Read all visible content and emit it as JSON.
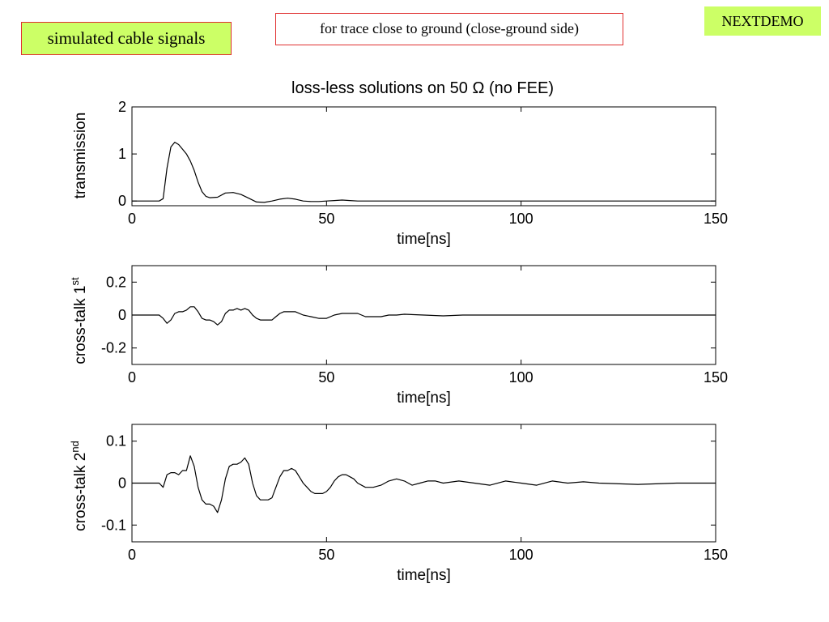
{
  "labels": {
    "left": "simulated cable signals",
    "center": "for trace close to ground (close-ground side)",
    "right": "NEXTDEMO"
  },
  "figure_title": "loss-less solutions on 50 Ω (no FEE)",
  "chart_data": [
    {
      "type": "line",
      "title": "loss-less solutions on 50 Ω (no FEE)",
      "xlabel": "time[ns]",
      "ylabel": "transmission",
      "ylabel_sup": "",
      "xlim": [
        0,
        150
      ],
      "ylim": [
        -0.1,
        2
      ],
      "xticks": [
        0,
        50,
        100,
        150
      ],
      "yticks": [
        0,
        1,
        2
      ],
      "grid": false,
      "series": [
        {
          "x": [
            0,
            7,
            8,
            9,
            10,
            11,
            12,
            13,
            14,
            15,
            16,
            17,
            18,
            19,
            20,
            22,
            24,
            26,
            28,
            30,
            32,
            34,
            36,
            38,
            40,
            42,
            44,
            46,
            48,
            50,
            52,
            54,
            56,
            58,
            60,
            70,
            80,
            150
          ],
          "y": [
            0,
            0,
            0.05,
            0.7,
            1.15,
            1.25,
            1.2,
            1.1,
            1.0,
            0.85,
            0.65,
            0.4,
            0.2,
            0.1,
            0.07,
            0.08,
            0.17,
            0.18,
            0.14,
            0.06,
            -0.02,
            -0.03,
            0.0,
            0.04,
            0.06,
            0.04,
            0.0,
            -0.01,
            -0.01,
            0.0,
            0.01,
            0.02,
            0.01,
            0.0,
            0.0,
            0.0,
            0.0,
            0.0
          ]
        }
      ]
    },
    {
      "type": "line",
      "title": "",
      "xlabel": "time[ns]",
      "ylabel": "cross-talk 1",
      "ylabel_sup": "st",
      "xlim": [
        0,
        150
      ],
      "ylim": [
        -0.3,
        0.3
      ],
      "xticks": [
        0,
        50,
        100,
        150
      ],
      "yticks": [
        0.2,
        0,
        -0.2
      ],
      "ytick_labels": [
        "0.2",
        "0",
        "-0.2"
      ],
      "grid": false,
      "series": [
        {
          "x": [
            0,
            7,
            8,
            9,
            10,
            11,
            12,
            13,
            14,
            15,
            16,
            17,
            18,
            19,
            20,
            21,
            22,
            23,
            24,
            25,
            26,
            27,
            28,
            29,
            30,
            31,
            32,
            33,
            34,
            35,
            36,
            37,
            38,
            39,
            40,
            41,
            42,
            44,
            46,
            48,
            50,
            52,
            54,
            56,
            58,
            60,
            62,
            64,
            66,
            68,
            70,
            75,
            80,
            85,
            90,
            95,
            100,
            110,
            120,
            150
          ],
          "y": [
            0,
            0,
            -0.02,
            -0.05,
            -0.03,
            0.01,
            0.02,
            0.02,
            0.03,
            0.05,
            0.05,
            0.02,
            -0.02,
            -0.03,
            -0.03,
            -0.04,
            -0.06,
            -0.04,
            0.01,
            0.03,
            0.03,
            0.04,
            0.03,
            0.04,
            0.03,
            0.0,
            -0.02,
            -0.03,
            -0.03,
            -0.03,
            -0.03,
            -0.01,
            0.01,
            0.02,
            0.02,
            0.02,
            0.02,
            0.0,
            -0.01,
            -0.02,
            -0.02,
            0.0,
            0.01,
            0.01,
            0.01,
            -0.01,
            -0.01,
            -0.01,
            0.0,
            0.0,
            0.005,
            0.0,
            -0.005,
            0.0,
            0.0,
            0.0,
            0.0,
            0.0,
            0.0,
            0.0
          ]
        }
      ]
    },
    {
      "type": "line",
      "title": "",
      "xlabel": "time[ns]",
      "ylabel": "cross-talk 2",
      "ylabel_sup": "nd",
      "xlim": [
        0,
        150
      ],
      "ylim": [
        -0.14,
        0.14
      ],
      "xticks": [
        0,
        50,
        100,
        150
      ],
      "yticks": [
        0.1,
        0,
        -0.1
      ],
      "ytick_labels": [
        "0.1",
        "0",
        "-0.1"
      ],
      "grid": false,
      "series": [
        {
          "x": [
            0,
            7,
            8,
            9,
            10,
            11,
            12,
            13,
            14,
            15,
            16,
            17,
            18,
            19,
            20,
            21,
            22,
            23,
            24,
            25,
            26,
            27,
            28,
            29,
            30,
            31,
            32,
            33,
            34,
            35,
            36,
            37,
            38,
            39,
            40,
            41,
            42,
            43,
            44,
            45,
            46,
            47,
            48,
            49,
            50,
            51,
            52,
            53,
            54,
            55,
            56,
            57,
            58,
            60,
            62,
            64,
            66,
            68,
            70,
            72,
            74,
            76,
            78,
            80,
            84,
            88,
            92,
            96,
            100,
            104,
            108,
            112,
            116,
            120,
            130,
            140,
            150
          ],
          "y": [
            0,
            0,
            -0.01,
            0.02,
            0.025,
            0.025,
            0.02,
            0.03,
            0.03,
            0.065,
            0.04,
            -0.01,
            -0.04,
            -0.05,
            -0.05,
            -0.055,
            -0.07,
            -0.04,
            0.01,
            0.04,
            0.045,
            0.045,
            0.05,
            0.06,
            0.045,
            0.0,
            -0.03,
            -0.04,
            -0.04,
            -0.04,
            -0.035,
            -0.01,
            0.015,
            0.03,
            0.03,
            0.035,
            0.03,
            0.015,
            0.0,
            -0.01,
            -0.02,
            -0.025,
            -0.025,
            -0.025,
            -0.02,
            -0.01,
            0.005,
            0.015,
            0.02,
            0.02,
            0.015,
            0.01,
            0.0,
            -0.01,
            -0.01,
            -0.005,
            0.005,
            0.01,
            0.005,
            -0.005,
            0.0,
            0.005,
            0.005,
            0.0,
            0.005,
            0.0,
            -0.005,
            0.005,
            0.0,
            -0.005,
            0.005,
            0.0,
            0.003,
            0.0,
            -0.003,
            0.0,
            0.0
          ]
        }
      ]
    }
  ]
}
